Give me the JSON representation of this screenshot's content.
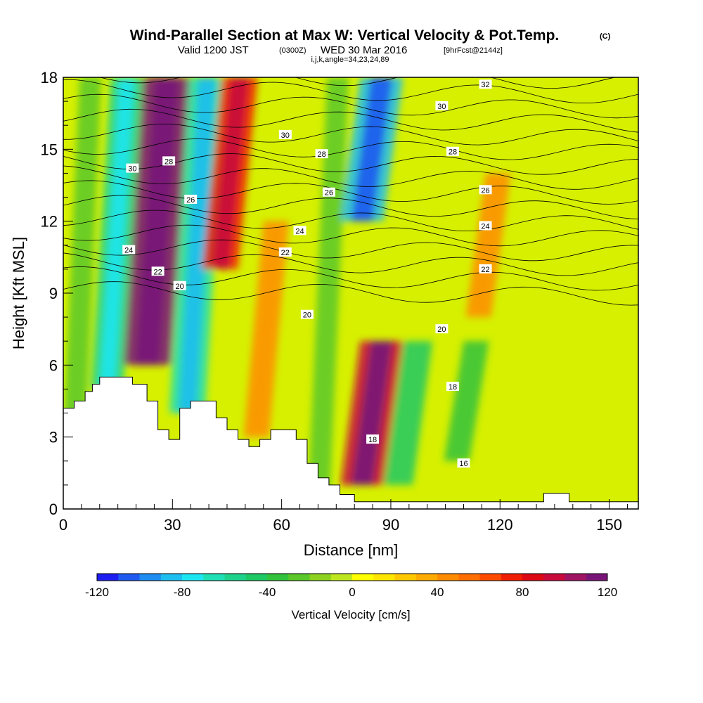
{
  "title": {
    "main": "Wind-Parallel Section at Max W: Vertical Velocity & Pot.Temp.",
    "main_suffix": "(C)",
    "sub_a": "Valid 1200 JST",
    "sub_b": "(0300Z)",
    "sub_c": "WED 30 Mar 2016",
    "sub_d": "[9hrFcst@2144z]",
    "params": "i,j,k,angle=34,23,24,89"
  },
  "chart_data": {
    "type": "heatmap",
    "xlabel": "Distance [nm]",
    "ylabel": "Height [Kft MSL]",
    "xlim": [
      0,
      158
    ],
    "ylim": [
      0,
      18
    ],
    "x_ticks": [
      0,
      30,
      60,
      90,
      120,
      150
    ],
    "y_ticks": [
      0,
      3,
      6,
      9,
      12,
      15,
      18
    ],
    "colorbar": {
      "title": "Vertical Velocity [cm/s]",
      "ticks": [
        -120,
        -80,
        -40,
        0,
        40,
        80,
        120
      ],
      "levels": [
        -120,
        -110,
        -100,
        -90,
        -80,
        -70,
        -60,
        -50,
        -40,
        -30,
        -20,
        -10,
        0,
        10,
        20,
        30,
        40,
        50,
        60,
        70,
        80,
        90,
        100,
        110,
        120
      ],
      "colors": [
        "#1e1ef0",
        "#1e5af0",
        "#1e8cf0",
        "#1ebef0",
        "#1ee6f0",
        "#1ee0b4",
        "#1ed28c",
        "#1ec864",
        "#32c23c",
        "#5ac828",
        "#8cd21e",
        "#bee61e",
        "#ffff00",
        "#ffe600",
        "#ffc800",
        "#ffaa00",
        "#ff8c00",
        "#ff6e00",
        "#ff4b00",
        "#f01e00",
        "#dc0a14",
        "#c80a3c",
        "#a01464",
        "#781478"
      ]
    },
    "vertical_velocity_features": [
      {
        "x": 4,
        "z": [
          0,
          18
        ],
        "w": -30
      },
      {
        "x": 14,
        "z": [
          5,
          18
        ],
        "w": -60
      },
      {
        "x": 25,
        "z": [
          6,
          18
        ],
        "w": 110
      },
      {
        "x": 36,
        "z": [
          4,
          18
        ],
        "w": -70
      },
      {
        "x": 45,
        "z": [
          10,
          18
        ],
        "w": 70
      },
      {
        "x": 55,
        "z": [
          3,
          12
        ],
        "w": 40
      },
      {
        "x": 72,
        "z": [
          0,
          18
        ],
        "w": -30
      },
      {
        "x": 84,
        "z": [
          12,
          18
        ],
        "w": -90
      },
      {
        "x": 84,
        "z": [
          1,
          7
        ],
        "w": 90
      },
      {
        "x": 94,
        "z": [
          1,
          7
        ],
        "w": -50
      },
      {
        "x": 110,
        "z": [
          2,
          7
        ],
        "w": -40
      },
      {
        "x": 116,
        "z": [
          8,
          14
        ],
        "w": 40
      }
    ],
    "theta_contour_labels": [
      {
        "text": "32",
        "x": 116,
        "z": 17.7
      },
      {
        "text": "30",
        "x": 104,
        "z": 16.8
      },
      {
        "text": "30",
        "x": 61,
        "z": 15.6
      },
      {
        "text": "30",
        "x": 19,
        "z": 14.2
      },
      {
        "text": "28",
        "x": 29,
        "z": 14.5
      },
      {
        "text": "28",
        "x": 71,
        "z": 14.8
      },
      {
        "text": "28",
        "x": 107,
        "z": 14.9
      },
      {
        "text": "26",
        "x": 35,
        "z": 12.9
      },
      {
        "text": "26",
        "x": 73,
        "z": 13.2
      },
      {
        "text": "26",
        "x": 116,
        "z": 13.3
      },
      {
        "text": "24",
        "x": 18,
        "z": 10.8
      },
      {
        "text": "24",
        "x": 65,
        "z": 11.6
      },
      {
        "text": "24",
        "x": 116,
        "z": 11.8
      },
      {
        "text": "22",
        "x": 26,
        "z": 9.9
      },
      {
        "text": "22",
        "x": 61,
        "z": 10.7
      },
      {
        "text": "22",
        "x": 116,
        "z": 10.0
      },
      {
        "text": "20",
        "x": 32,
        "z": 9.3
      },
      {
        "text": "20",
        "x": 67,
        "z": 8.1
      },
      {
        "text": "20",
        "x": 104,
        "z": 7.5
      },
      {
        "text": "18",
        "x": 107,
        "z": 5.1
      },
      {
        "text": "18",
        "x": 85,
        "z": 2.9
      },
      {
        "text": "16",
        "x": 110,
        "z": 1.9
      }
    ],
    "terrain_profile": [
      [
        0,
        4.2
      ],
      [
        3,
        4.2
      ],
      [
        3,
        4.5
      ],
      [
        6,
        4.5
      ],
      [
        6,
        4.9
      ],
      [
        8,
        4.9
      ],
      [
        8,
        5.2
      ],
      [
        10,
        5.2
      ],
      [
        10,
        5.5
      ],
      [
        19,
        5.5
      ],
      [
        19,
        5.2
      ],
      [
        23,
        5.2
      ],
      [
        23,
        4.5
      ],
      [
        26,
        4.5
      ],
      [
        26,
        3.3
      ],
      [
        29,
        3.3
      ],
      [
        29,
        2.9
      ],
      [
        32,
        2.9
      ],
      [
        32,
        4.2
      ],
      [
        35,
        4.2
      ],
      [
        35,
        4.5
      ],
      [
        42,
        4.5
      ],
      [
        42,
        3.8
      ],
      [
        45,
        3.8
      ],
      [
        45,
        3.3
      ],
      [
        48,
        3.3
      ],
      [
        48,
        2.9
      ],
      [
        51,
        2.9
      ],
      [
        51,
        2.6
      ],
      [
        54,
        2.6
      ],
      [
        54,
        2.9
      ],
      [
        57,
        2.9
      ],
      [
        57,
        3.3
      ],
      [
        64,
        3.3
      ],
      [
        64,
        2.9
      ],
      [
        67,
        2.9
      ],
      [
        67,
        1.9
      ],
      [
        70,
        1.9
      ],
      [
        70,
        1.3
      ],
      [
        73,
        1.3
      ],
      [
        73,
        1.0
      ],
      [
        76,
        1.0
      ],
      [
        76,
        0.6
      ],
      [
        80,
        0.6
      ],
      [
        80,
        0.3
      ],
      [
        132,
        0.3
      ],
      [
        132,
        0.65
      ],
      [
        139,
        0.65
      ],
      [
        139,
        0.3
      ],
      [
        158,
        0.3
      ]
    ]
  }
}
